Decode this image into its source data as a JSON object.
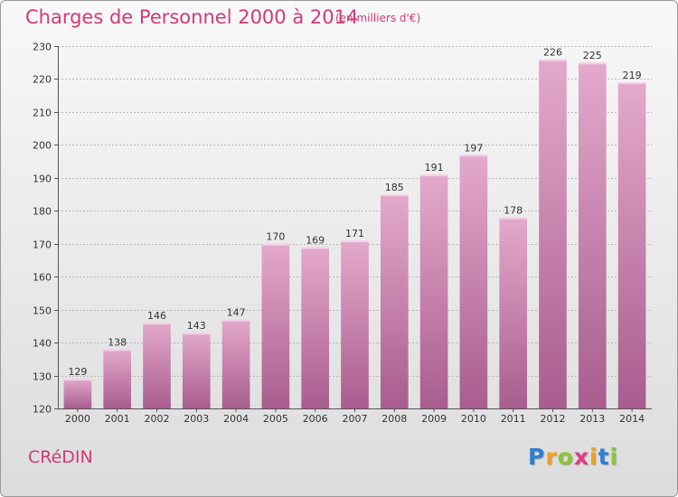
{
  "header": {
    "title": "Charges de Personnel 2000 à 2014",
    "subtitle": "(en milliers d'€)"
  },
  "footer": {
    "commune": "CRéDIN",
    "logo_letters": [
      "P",
      "r",
      "o",
      "x",
      "i",
      "t",
      "i"
    ],
    "logo_colors": [
      "#2d7fd0",
      "#f0a020",
      "#8cc43c",
      "#e23b84",
      "#f0a020",
      "#2d7fd0",
      "#8cc43c"
    ]
  },
  "colors": {
    "bar_top": "#e4a9cc",
    "bar_bottom": "#a85d8e",
    "accent": "#d23a78"
  },
  "chart_data": {
    "type": "bar",
    "title": "Charges de Personnel 2000 à 2014",
    "subtitle": "(en milliers d'€)",
    "categories": [
      "2000",
      "2001",
      "2002",
      "2003",
      "2004",
      "2005",
      "2006",
      "2007",
      "2008",
      "2009",
      "2010",
      "2011",
      "2012",
      "2013",
      "2014"
    ],
    "values": [
      129,
      138,
      146,
      143,
      147,
      170,
      169,
      171,
      185,
      191,
      197,
      178,
      226,
      225,
      219
    ],
    "ylim": [
      120,
      230
    ],
    "yticks": [
      120,
      130,
      140,
      150,
      160,
      170,
      180,
      190,
      200,
      210,
      220,
      230
    ],
    "grid": true,
    "xlabel": "",
    "ylabel": ""
  }
}
